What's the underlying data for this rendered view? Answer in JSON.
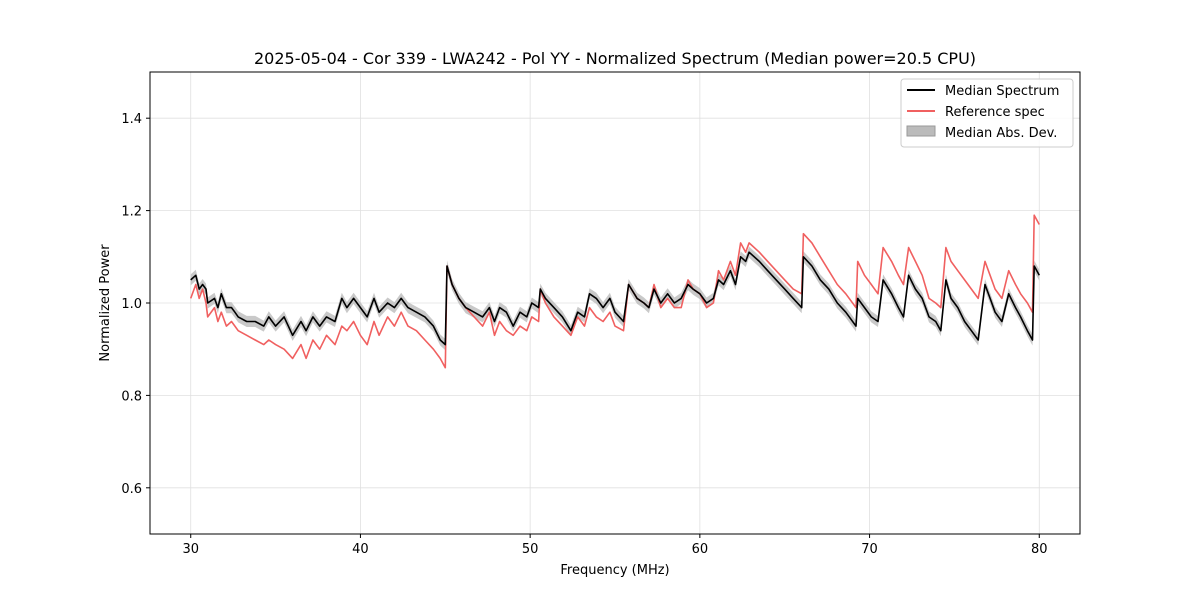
{
  "chart_data": {
    "type": "line",
    "title": "2025-05-04 - Cor 339 - LWA242 - Pol YY - Normalized Spectrum (Median power=20.5 CPU)",
    "xlabel": "Frequency (MHz)",
    "ylabel": "Normalized Power",
    "xlim": [
      27.6,
      82.4
    ],
    "ylim": [
      0.5,
      1.5
    ],
    "xticks": [
      30,
      40,
      50,
      60,
      70,
      80
    ],
    "yticks": [
      0.6,
      0.8,
      1.0,
      1.2,
      1.4
    ],
    "xtick_labels": [
      "30",
      "40",
      "50",
      "60",
      "70",
      "80"
    ],
    "ytick_labels": [
      "0.6",
      "0.8",
      "1.0",
      "1.2",
      "1.4"
    ],
    "grid": true,
    "legend_position": "top-right",
    "series": [
      {
        "name": "Median Spectrum",
        "color": "#000000",
        "x": [
          30.0,
          30.3,
          30.5,
          30.7,
          30.9,
          31.0,
          31.4,
          31.6,
          31.8,
          32.1,
          32.4,
          32.6,
          32.8,
          33.3,
          33.8,
          34.3,
          34.6,
          35.0,
          35.5,
          36.0,
          36.5,
          36.8,
          37.2,
          37.6,
          38.0,
          38.5,
          38.9,
          39.2,
          39.6,
          40.0,
          40.4,
          40.8,
          41.1,
          41.6,
          42.0,
          42.4,
          42.8,
          43.3,
          43.8,
          44.3,
          44.7,
          45.0,
          45.1,
          45.4,
          45.8,
          46.2,
          46.7,
          47.2,
          47.6,
          47.9,
          48.2,
          48.6,
          49.0,
          49.4,
          49.8,
          50.1,
          50.5,
          50.6,
          50.9,
          51.4,
          51.9,
          52.4,
          52.8,
          53.2,
          53.5,
          53.9,
          54.3,
          54.7,
          55.0,
          55.5,
          55.8,
          56.3,
          56.7,
          57.0,
          57.3,
          57.7,
          58.1,
          58.5,
          58.9,
          59.3,
          59.6,
          60.0,
          60.4,
          60.8,
          61.1,
          61.4,
          61.8,
          62.1,
          62.4,
          62.7,
          62.9,
          63.5,
          64.0,
          64.5,
          65.0,
          65.5,
          66.0,
          66.1,
          66.6,
          67.1,
          67.6,
          68.1,
          68.6,
          69.2,
          69.3,
          69.7,
          70.1,
          70.5,
          70.8,
          71.3,
          71.7,
          72.0,
          72.3,
          72.7,
          73.1,
          73.5,
          73.9,
          74.2,
          74.5,
          74.8,
          75.2,
          75.6,
          76.0,
          76.4,
          76.8,
          77.1,
          77.4,
          77.8,
          78.2,
          78.6,
          78.9,
          79.3,
          79.6,
          79.7,
          80.0
        ],
        "y": [
          1.05,
          1.06,
          1.03,
          1.04,
          1.03,
          1.0,
          1.01,
          0.99,
          1.02,
          0.99,
          0.99,
          0.98,
          0.97,
          0.96,
          0.96,
          0.95,
          0.97,
          0.95,
          0.97,
          0.93,
          0.96,
          0.94,
          0.97,
          0.95,
          0.97,
          0.96,
          1.01,
          0.99,
          1.01,
          0.99,
          0.97,
          1.01,
          0.98,
          1.0,
          0.99,
          1.01,
          0.99,
          0.98,
          0.97,
          0.95,
          0.92,
          0.91,
          1.08,
          1.04,
          1.01,
          0.99,
          0.98,
          0.97,
          0.99,
          0.96,
          0.99,
          0.98,
          0.95,
          0.98,
          0.97,
          1.0,
          0.99,
          1.03,
          1.01,
          0.99,
          0.97,
          0.94,
          0.98,
          0.97,
          1.02,
          1.01,
          0.99,
          1.01,
          0.98,
          0.96,
          1.04,
          1.01,
          1.0,
          0.99,
          1.03,
          1.0,
          1.02,
          1.0,
          1.01,
          1.04,
          1.03,
          1.02,
          1.0,
          1.01,
          1.05,
          1.04,
          1.07,
          1.04,
          1.1,
          1.09,
          1.11,
          1.09,
          1.07,
          1.05,
          1.03,
          1.01,
          0.99,
          1.1,
          1.08,
          1.05,
          1.03,
          1.0,
          0.98,
          0.95,
          1.01,
          0.99,
          0.97,
          0.96,
          1.05,
          1.02,
          0.99,
          0.97,
          1.06,
          1.03,
          1.01,
          0.97,
          0.96,
          0.94,
          1.05,
          1.01,
          0.99,
          0.96,
          0.94,
          0.92,
          1.04,
          1.01,
          0.98,
          0.96,
          1.02,
          0.99,
          0.97,
          0.94,
          0.92,
          1.08,
          1.06
        ],
        "band": {
          "name": "Median Abs. Dev.",
          "color": "#bbbbbb",
          "halfwidth": 0.012
        }
      },
      {
        "name": "Reference spec",
        "color": "#f06060",
        "x": [
          30.0,
          30.3,
          30.5,
          30.7,
          30.9,
          31.0,
          31.4,
          31.6,
          31.8,
          32.1,
          32.4,
          32.6,
          32.8,
          33.3,
          33.8,
          34.3,
          34.6,
          35.0,
          35.5,
          36.0,
          36.5,
          36.8,
          37.2,
          37.6,
          38.0,
          38.5,
          38.9,
          39.2,
          39.6,
          40.0,
          40.4,
          40.8,
          41.1,
          41.6,
          42.0,
          42.4,
          42.8,
          43.3,
          43.8,
          44.3,
          44.7,
          45.0,
          45.1,
          45.4,
          45.8,
          46.2,
          46.7,
          47.2,
          47.6,
          47.9,
          48.2,
          48.6,
          49.0,
          49.4,
          49.8,
          50.1,
          50.5,
          50.6,
          50.9,
          51.4,
          51.9,
          52.4,
          52.8,
          53.2,
          53.5,
          53.9,
          54.3,
          54.7,
          55.0,
          55.5,
          55.8,
          56.3,
          56.7,
          57.0,
          57.3,
          57.7,
          58.1,
          58.5,
          58.9,
          59.3,
          59.6,
          60.0,
          60.4,
          60.8,
          61.1,
          61.4,
          61.8,
          62.1,
          62.4,
          62.7,
          62.9,
          63.5,
          64.0,
          64.5,
          65.0,
          65.5,
          66.0,
          66.1,
          66.6,
          67.1,
          67.6,
          68.1,
          68.6,
          69.2,
          69.3,
          69.7,
          70.1,
          70.5,
          70.8,
          71.3,
          71.7,
          72.0,
          72.3,
          72.7,
          73.1,
          73.5,
          73.9,
          74.2,
          74.5,
          74.8,
          75.2,
          75.6,
          76.0,
          76.4,
          76.8,
          77.1,
          77.4,
          77.8,
          78.2,
          78.6,
          78.9,
          79.3,
          79.6,
          79.7,
          80.0
        ],
        "y": [
          1.01,
          1.04,
          1.01,
          1.03,
          1.0,
          0.97,
          0.99,
          0.96,
          0.98,
          0.95,
          0.96,
          0.95,
          0.94,
          0.93,
          0.92,
          0.91,
          0.92,
          0.91,
          0.9,
          0.88,
          0.91,
          0.88,
          0.92,
          0.9,
          0.93,
          0.91,
          0.95,
          0.94,
          0.96,
          0.93,
          0.91,
          0.96,
          0.93,
          0.97,
          0.95,
          0.98,
          0.95,
          0.94,
          0.92,
          0.9,
          0.88,
          0.86,
          1.08,
          1.04,
          1.01,
          0.99,
          0.97,
          0.95,
          0.98,
          0.93,
          0.96,
          0.94,
          0.93,
          0.95,
          0.94,
          0.97,
          0.96,
          1.03,
          1.0,
          0.97,
          0.95,
          0.93,
          0.97,
          0.95,
          0.99,
          0.97,
          0.96,
          0.98,
          0.95,
          0.94,
          1.04,
          1.01,
          1.0,
          0.99,
          1.04,
          0.99,
          1.01,
          0.99,
          0.99,
          1.05,
          1.03,
          1.02,
          0.99,
          1.0,
          1.07,
          1.05,
          1.09,
          1.06,
          1.13,
          1.11,
          1.13,
          1.11,
          1.09,
          1.07,
          1.05,
          1.03,
          1.02,
          1.15,
          1.13,
          1.1,
          1.07,
          1.04,
          1.02,
          0.99,
          1.09,
          1.06,
          1.04,
          1.02,
          1.12,
          1.09,
          1.06,
          1.04,
          1.12,
          1.09,
          1.06,
          1.01,
          1.0,
          0.99,
          1.12,
          1.09,
          1.07,
          1.05,
          1.03,
          1.01,
          1.09,
          1.06,
          1.03,
          1.01,
          1.07,
          1.04,
          1.02,
          1.0,
          0.98,
          1.19,
          1.17
        ]
      }
    ]
  }
}
